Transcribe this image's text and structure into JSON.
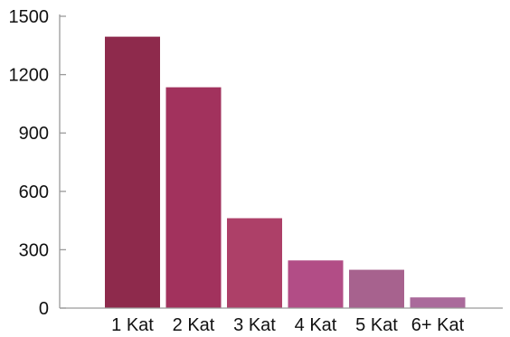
{
  "chart_data": {
    "type": "bar",
    "categories": [
      "1 Kat",
      "2 Kat",
      "3 Kat",
      "4 Kat",
      "5 Kat",
      "6+ Kat"
    ],
    "values": [
      1395,
      1135,
      462,
      245,
      197,
      55
    ],
    "colors": [
      "#8e2a4c",
      "#a2325d",
      "#ad4068",
      "#b24d86",
      "#a7628e",
      "#aa6a9b"
    ],
    "title": "",
    "xlabel": "",
    "ylabel": "",
    "ylim": [
      0,
      1500
    ],
    "yticks": [
      0,
      300,
      600,
      900,
      1200,
      1500
    ],
    "grid": false,
    "legend": "none"
  }
}
